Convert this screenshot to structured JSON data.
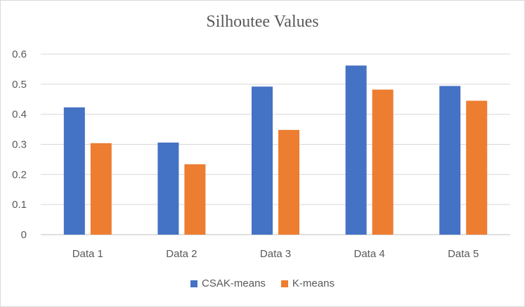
{
  "chart_data": {
    "type": "bar",
    "title": "Silhoutee Values",
    "xlabel": "",
    "ylabel": "",
    "categories": [
      "Data 1",
      "Data 2",
      "Data 3",
      "Data 4",
      "Data 5"
    ],
    "series": [
      {
        "name": "CSAK-means",
        "color": "#4472C4",
        "values": [
          0.423,
          0.306,
          0.492,
          0.562,
          0.494
        ]
      },
      {
        "name": "K-means",
        "color": "#ED7D31",
        "values": [
          0.304,
          0.234,
          0.348,
          0.482,
          0.445
        ]
      }
    ],
    "ylim": [
      0,
      0.6
    ],
    "yticks": [
      "0",
      "0.1",
      "0.2",
      "0.3",
      "0.4",
      "0.5",
      "0.6"
    ],
    "grid": true,
    "legend": "bottom"
  }
}
